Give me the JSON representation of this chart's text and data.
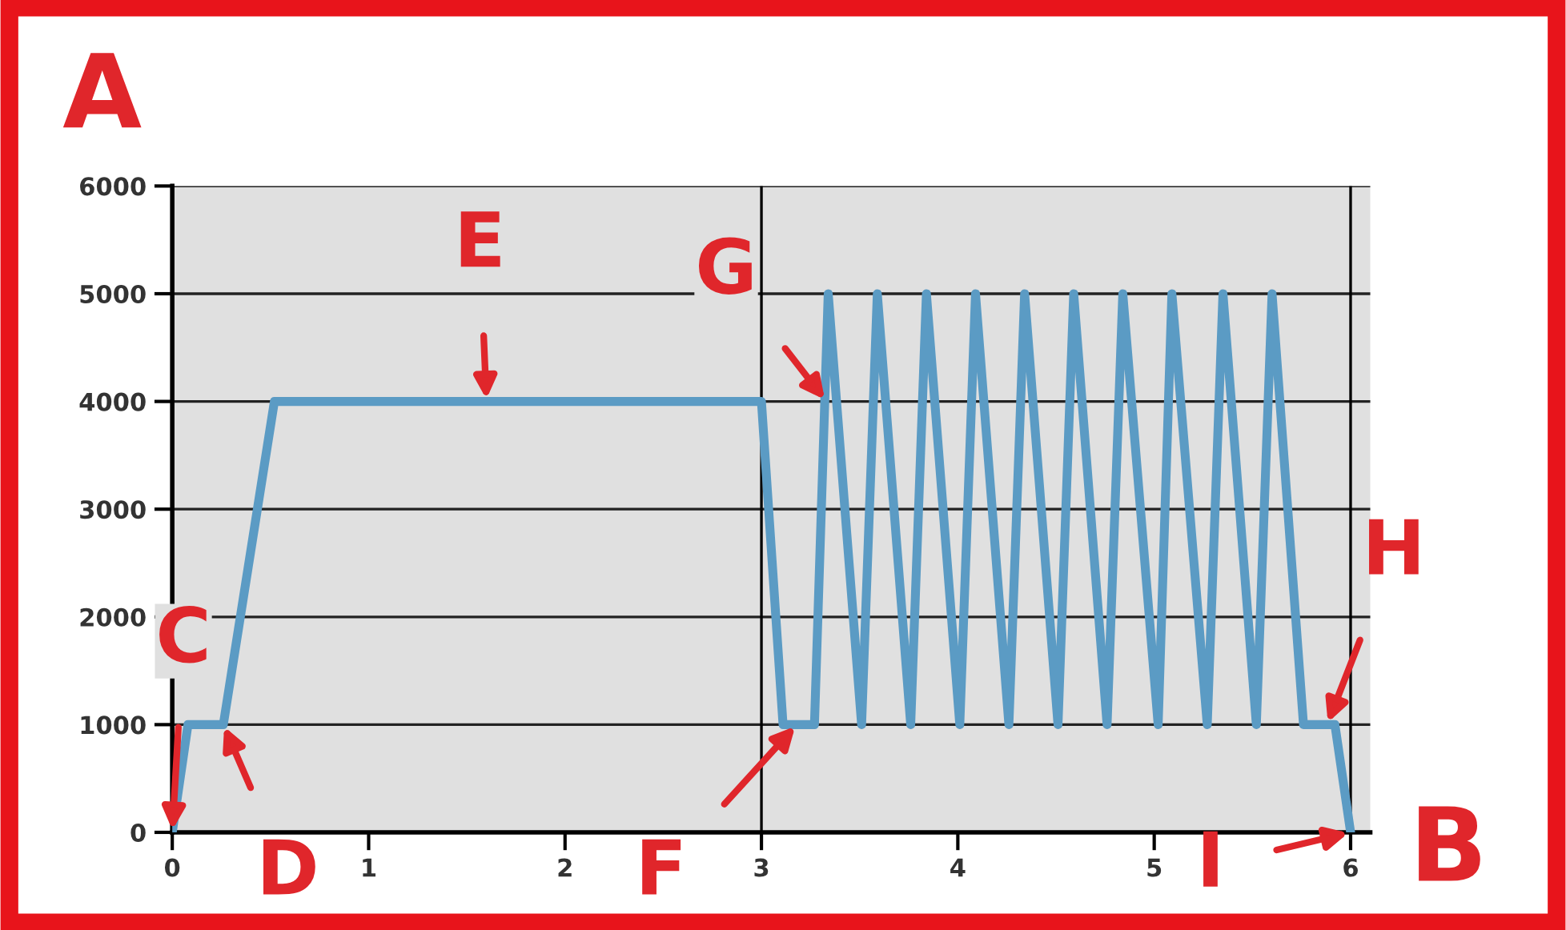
{
  "chart_data": {
    "type": "line",
    "x": [
      0,
      0.08,
      0.26,
      0.52,
      3.0,
      3.11,
      3.27,
      3.34,
      3.51,
      3.59,
      3.76,
      3.84,
      4.01,
      4.09,
      4.26,
      4.34,
      4.51,
      4.59,
      4.76,
      4.84,
      5.02,
      5.09,
      5.27,
      5.35,
      5.52,
      5.6,
      5.76,
      5.92,
      6.0
    ],
    "series": [
      {
        "color": "#5b9bc4",
        "values": [
          0,
          1000,
          1000,
          4000,
          4000,
          1000,
          1000,
          5000,
          1000,
          5000,
          1000,
          5000,
          1000,
          5000,
          1000,
          5000,
          1000,
          5000,
          1000,
          5000,
          1000,
          5000,
          1000,
          5000,
          1000,
          5000,
          1000,
          1000,
          0
        ]
      }
    ],
    "xlim": [
      0,
      6.1
    ],
    "ylim": [
      0,
      6000
    ],
    "xticks": [
      0,
      1,
      2,
      3,
      4,
      5,
      6
    ],
    "yticks": [
      0,
      1000,
      2000,
      3000,
      4000,
      5000,
      6000
    ],
    "grid": "y",
    "marker": "none",
    "line_style": "solid",
    "ref_lines": [
      {
        "axis": "x",
        "value": 3,
        "color": "#000000"
      },
      {
        "axis": "x",
        "value": 6,
        "color": "#000000"
      }
    ],
    "annotations": [
      "A",
      "B",
      {
        "text": "C",
        "x": 0,
        "y": 0
      },
      {
        "text": "D",
        "x": 0.26,
        "y": 1000
      },
      {
        "text": "E",
        "x": 1.6,
        "y": 4000
      },
      {
        "text": "F",
        "x": 3.18,
        "y": 1000
      },
      {
        "text": "G",
        "x": 3.33,
        "y": 4000
      },
      {
        "text": "H",
        "x": 5.88,
        "y": 1000
      },
      {
        "text": "I",
        "x": 6.0,
        "y": 0
      }
    ]
  }
}
